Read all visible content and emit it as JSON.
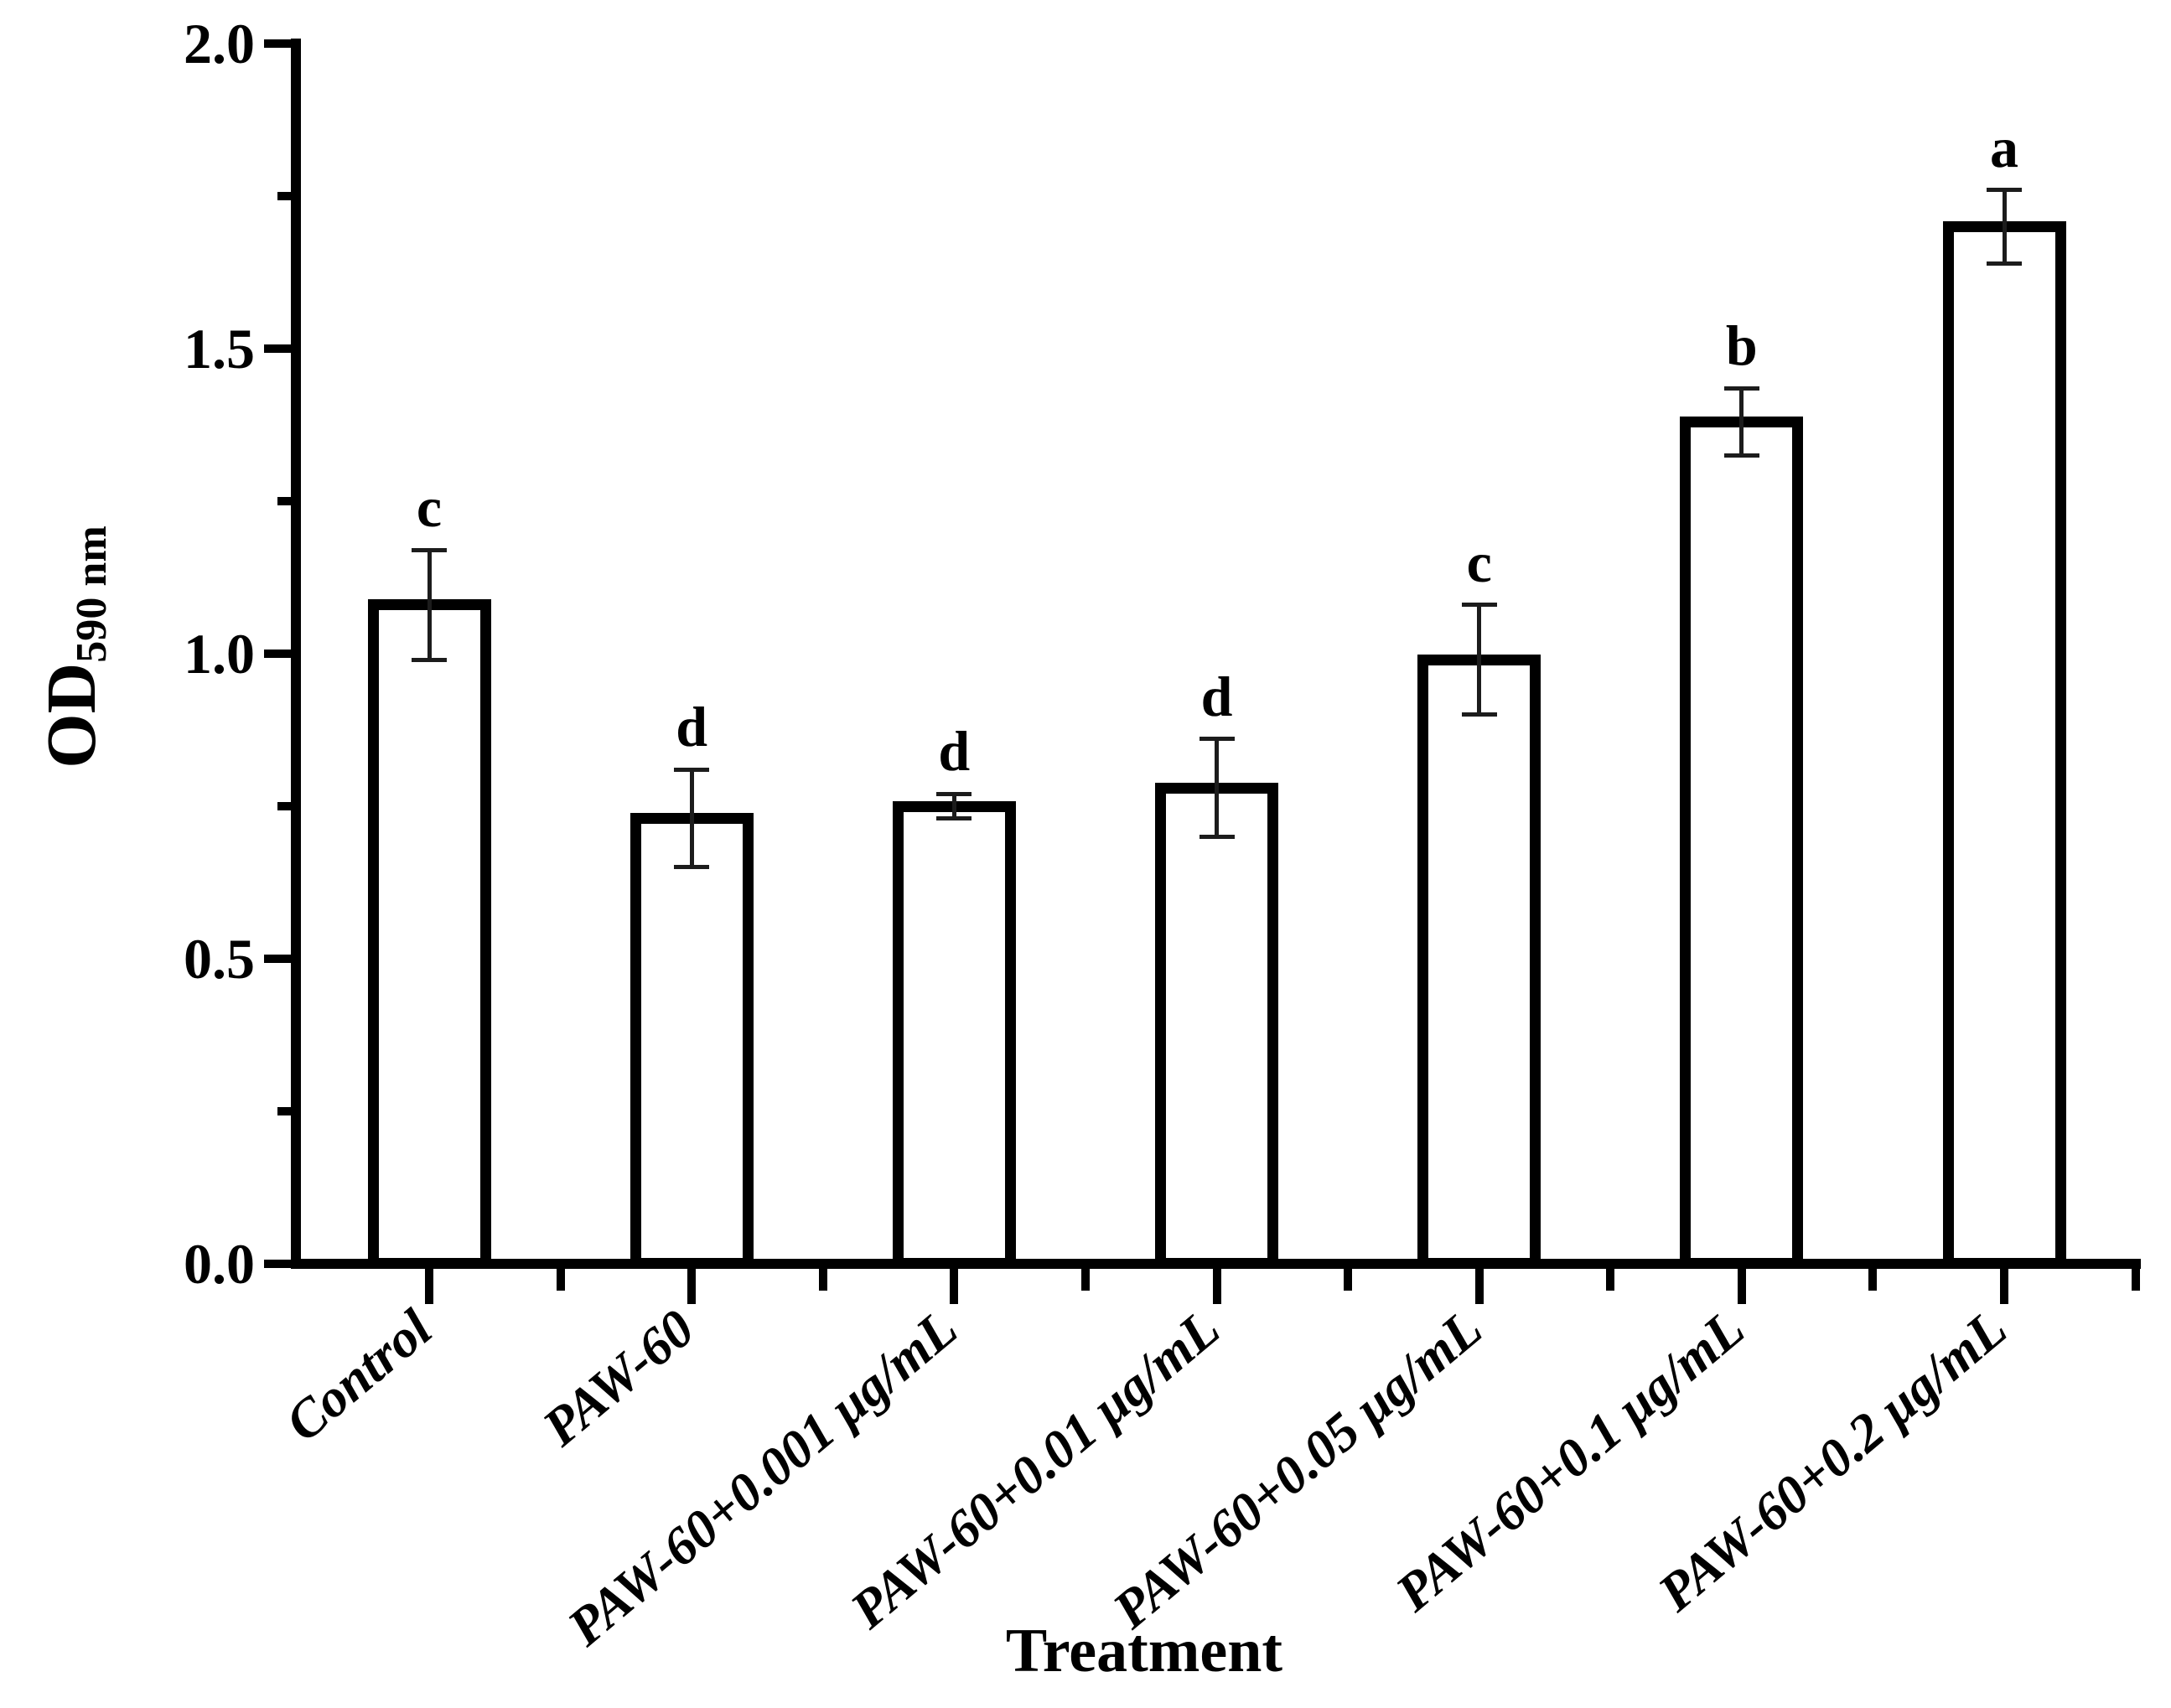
{
  "chart_data": {
    "type": "bar",
    "title": "",
    "xlabel": "Treatment",
    "ylabel": "OD",
    "ylabel_subscript": "590 nm",
    "categories": [
      "Control",
      "PAW-60",
      "PAW-60+0.001 μg/mL",
      "PAW-60+0.01 μg/mL",
      "PAW-60+0.05 μg/mL",
      "PAW-60+0.1 μg/mL",
      "PAW-60+0.2 μg/mL"
    ],
    "values": [
      1.08,
      0.73,
      0.75,
      0.78,
      0.99,
      1.38,
      1.7
    ],
    "errors": [
      0.09,
      0.08,
      0.02,
      0.08,
      0.09,
      0.055,
      0.06
    ],
    "sig_letters": [
      "c",
      "d",
      "d",
      "d",
      "c",
      "b",
      "a"
    ],
    "ylim": [
      0.0,
      2.0
    ],
    "ytick_step": 0.5,
    "ytick_labels": [
      "0.0",
      "0.5",
      "1.0",
      "1.5",
      "2.0"
    ],
    "minor_tick_step": 0.25,
    "x_tick_rotation_deg": -40,
    "bar_fill": "#ffffff",
    "bar_stroke": "#000000",
    "text_color": "#000000",
    "grid": "off",
    "legend": "none"
  }
}
